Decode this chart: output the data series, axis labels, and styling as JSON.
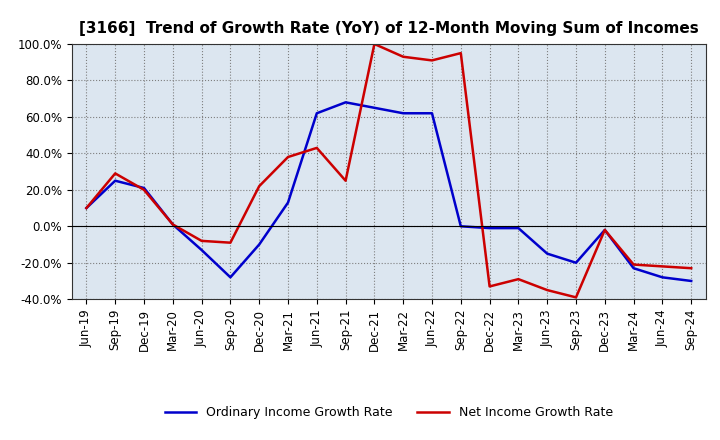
{
  "title": "[3166]  Trend of Growth Rate (YoY) of 12-Month Moving Sum of Incomes",
  "x_labels": [
    "Jun-19",
    "Sep-19",
    "Dec-19",
    "Mar-20",
    "Jun-20",
    "Sep-20",
    "Dec-20",
    "Mar-21",
    "Jun-21",
    "Sep-21",
    "Dec-21",
    "Mar-22",
    "Jun-22",
    "Sep-22",
    "Dec-22",
    "Mar-23",
    "Jun-23",
    "Sep-23",
    "Dec-23",
    "Mar-24",
    "Jun-24",
    "Sep-24"
  ],
  "ordinary_income": [
    0.1,
    0.25,
    0.21,
    0.01,
    -0.13,
    -0.28,
    -0.1,
    0.13,
    0.62,
    0.68,
    0.65,
    0.62,
    0.62,
    0.0,
    -0.01,
    -0.01,
    -0.15,
    -0.2,
    -0.02,
    -0.23,
    -0.28,
    -0.3
  ],
  "net_income": [
    0.1,
    0.29,
    0.2,
    0.01,
    -0.08,
    -0.09,
    0.22,
    0.38,
    0.43,
    0.25,
    1.0,
    0.93,
    0.91,
    0.95,
    -0.33,
    -0.29,
    -0.35,
    -0.39,
    -0.02,
    -0.21,
    -0.22,
    -0.23
  ],
  "ordinary_color": "#0000cc",
  "net_color": "#cc0000",
  "ylim": [
    -0.4,
    1.0
  ],
  "yticks": [
    -0.4,
    -0.2,
    0.0,
    0.2,
    0.4,
    0.6,
    0.8,
    1.0
  ],
  "background_color": "#ffffff",
  "plot_bg_color": "#dce6f0",
  "grid_color": "#7f7f7f",
  "legend_ordinary": "Ordinary Income Growth Rate",
  "legend_net": "Net Income Growth Rate",
  "line_width": 1.8,
  "title_fontsize": 11,
  "tick_fontsize": 8.5,
  "legend_fontsize": 9
}
